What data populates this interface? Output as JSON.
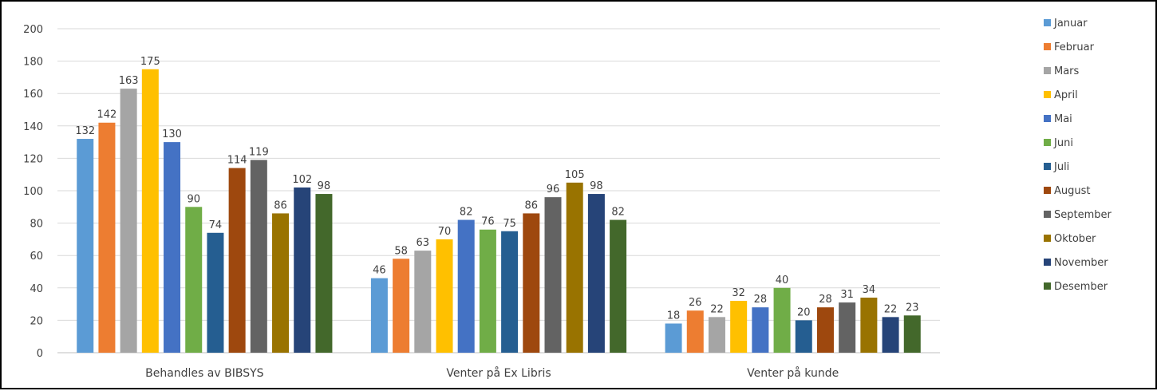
{
  "chart_data": {
    "type": "bar",
    "categories": [
      "Behandles av BIBSYS",
      "Venter på Ex Libris",
      "Venter på kunde"
    ],
    "ylim": [
      0,
      200
    ],
    "yticks": [
      0,
      20,
      40,
      60,
      80,
      100,
      120,
      140,
      160,
      180,
      200
    ],
    "grid": true,
    "legend_position": "right",
    "series": [
      {
        "name": "Januar",
        "color": "#5B9BD5",
        "values": [
          132,
          46,
          18
        ]
      },
      {
        "name": "Februar",
        "color": "#ED7D31",
        "values": [
          142,
          58,
          26
        ]
      },
      {
        "name": "Mars",
        "color": "#A5A5A5",
        "values": [
          163,
          63,
          22
        ]
      },
      {
        "name": "April",
        "color": "#FFC000",
        "values": [
          175,
          70,
          32
        ]
      },
      {
        "name": "Mai",
        "color": "#4472C4",
        "values": [
          130,
          82,
          28
        ]
      },
      {
        "name": "Juni",
        "color": "#70AD47",
        "values": [
          90,
          76,
          40
        ]
      },
      {
        "name": "Juli",
        "color": "#255E91",
        "values": [
          74,
          75,
          20
        ]
      },
      {
        "name": "August",
        "color": "#9E480E",
        "values": [
          114,
          86,
          28
        ]
      },
      {
        "name": "September",
        "color": "#636363",
        "values": [
          119,
          96,
          31
        ]
      },
      {
        "name": "Oktober",
        "color": "#997300",
        "values": [
          86,
          105,
          34
        ]
      },
      {
        "name": "November",
        "color": "#264478",
        "values": [
          102,
          98,
          22
        ]
      },
      {
        "name": "Desember",
        "color": "#43682B",
        "values": [
          98,
          82,
          23
        ]
      }
    ]
  }
}
